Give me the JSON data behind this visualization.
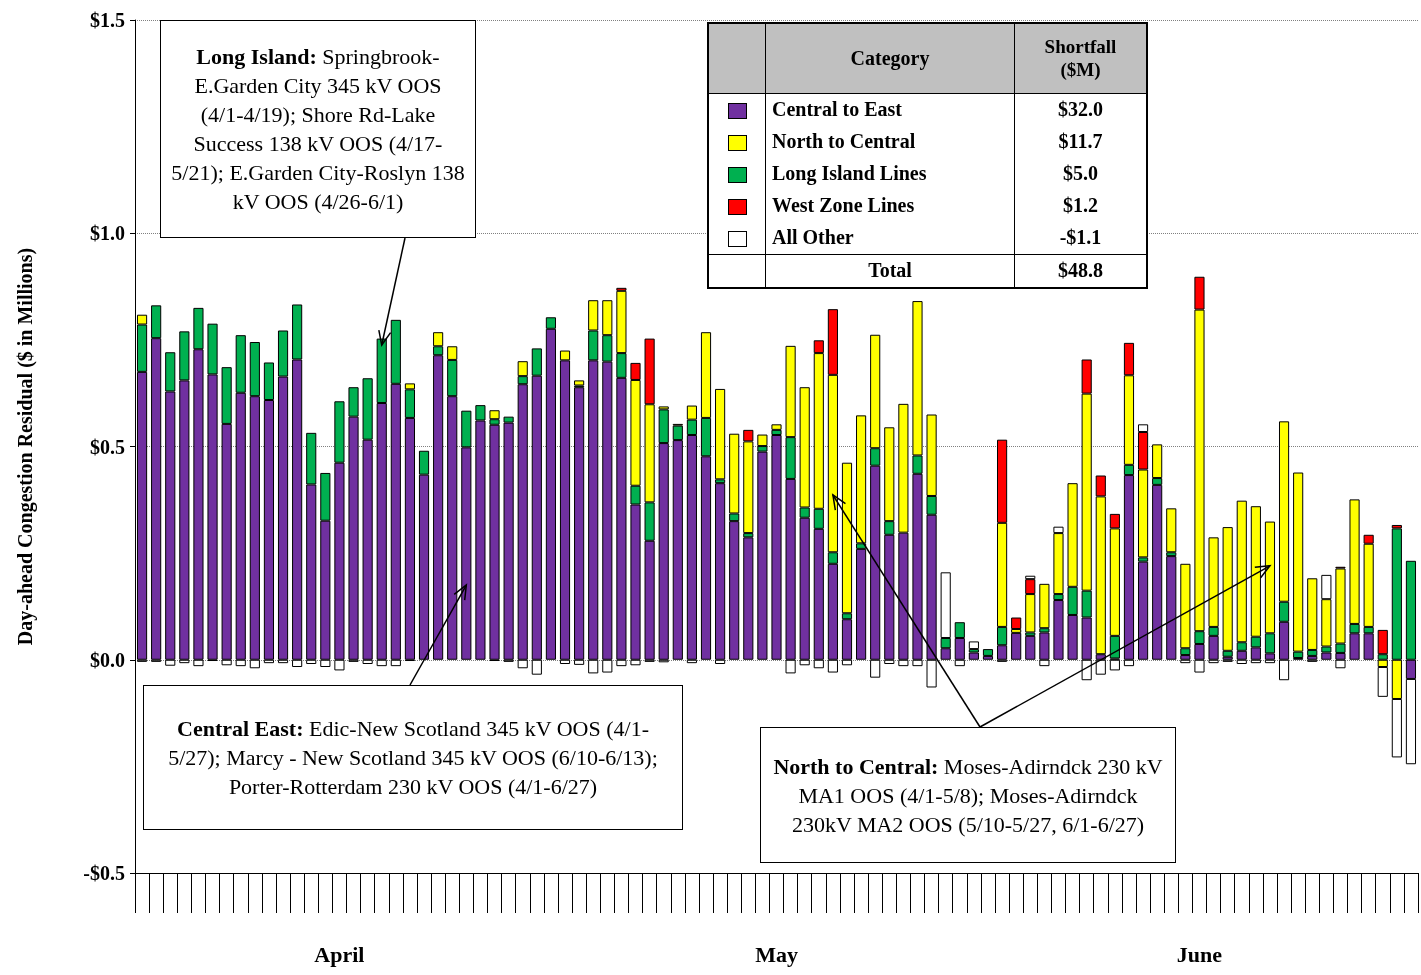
{
  "chart_data": {
    "type": "bar",
    "stacked": true,
    "ylabel": "Day-ahead Congestion Residual ($ in Millions)",
    "legend_title": "Category",
    "legend": "top right",
    "grid": "y",
    "ylim": [
      -0.5,
      1.5
    ],
    "yticks": [
      {
        "value": -0.5,
        "label": "-$0.5"
      },
      {
        "value": 0,
        "label": "$0.0"
      },
      {
        "value": 0.5,
        "label": "$0.5"
      },
      {
        "value": 1,
        "label": "$1.0"
      },
      {
        "value": 1.5,
        "label": "$1.5"
      }
    ],
    "categories": [
      null,
      null,
      null,
      null,
      null,
      null,
      null,
      null,
      null,
      null,
      null,
      null,
      null,
      null,
      "April",
      null,
      null,
      null,
      null,
      null,
      null,
      null,
      null,
      null,
      null,
      null,
      null,
      null,
      null,
      null,
      null,
      null,
      null,
      null,
      null,
      null,
      null,
      null,
      null,
      null,
      null,
      null,
      null,
      null,
      null,
      "May",
      null,
      null,
      null,
      null,
      null,
      null,
      null,
      null,
      null,
      null,
      null,
      null,
      null,
      null,
      null,
      null,
      null,
      null,
      null,
      null,
      null,
      null,
      null,
      null,
      null,
      null,
      null,
      null,
      null,
      "June",
      null,
      null,
      null,
      null,
      null,
      null,
      null,
      null,
      null,
      null,
      null,
      null,
      null,
      null,
      null
    ],
    "series": [
      {
        "name": "Central to East",
        "color": "#7030a0",
        "values": [
          0.675,
          0.754,
          0.629,
          0.655,
          0.728,
          0.669,
          0.553,
          0.626,
          0.618,
          0.609,
          0.664,
          0.704,
          0.411,
          0.326,
          0.462,
          0.57,
          0.516,
          0.602,
          0.647,
          0.567,
          0.434,
          0.714,
          0.618,
          0.498,
          0.561,
          0.551,
          0.556,
          0.646,
          0.666,
          0.776,
          0.702,
          0.639,
          0.702,
          0.699,
          0.661,
          0.364,
          0.279,
          0.508,
          0.515,
          0.527,
          0.477,
          0.414,
          0.325,
          0.287,
          0.488,
          0.527,
          0.424,
          0.333,
          0.307,
          0.225,
          0.095,
          0.26,
          0.455,
          0.293,
          0.298,
          0.436,
          0.34,
          0.027,
          0.051,
          0.017,
          0.009,
          0.034,
          0.063,
          0.056,
          0.064,
          0.14,
          0.105,
          0.099,
          0.013,
          0.003,
          0.433,
          0.23,
          0.41,
          0.243,
          0.011,
          0.037,
          0.056,
          0.007,
          0.021,
          0.029,
          0.015,
          0.089,
          0.004,
          0.009,
          0.017,
          0.016,
          0.062,
          0.062,
          null,
          null,
          -0.045
        ]
      },
      {
        "name": "Long Island Lines",
        "color": "#00b050",
        "values": [
          0.111,
          0.077,
          0.092,
          0.115,
          0.097,
          0.119,
          0.133,
          0.135,
          0.127,
          0.088,
          0.108,
          0.129,
          0.121,
          0.112,
          0.144,
          0.069,
          0.144,
          0.151,
          0.15,
          0.067,
          0.056,
          0.021,
          0.085,
          0.086,
          0.036,
          0.013,
          0.014,
          0.019,
          0.064,
          0.027,
          null,
          0.004,
          0.07,
          0.062,
          0.058,
          0.044,
          0.09,
          0.079,
          0.034,
          0.036,
          0.09,
          0.009,
          0.018,
          0.01,
          0.013,
          0.012,
          0.098,
          0.024,
          0.047,
          0.027,
          0.014,
          0.013,
          0.041,
          0.032,
          null,
          0.043,
          0.044,
          0.024,
          0.037,
          0.008,
          0.016,
          0.043,
          null,
          0.008,
          0.01,
          0.014,
          0.066,
          0.063,
          null,
          0.053,
          0.024,
          0.01,
          0.016,
          0.009,
          0.016,
          0.03,
          0.021,
          0.014,
          0.02,
          0.025,
          0.047,
          0.047,
          0.015,
          0.014,
          0.014,
          0.022,
          0.022,
          0.015,
          0.013,
          0.308,
          0.232
        ]
      },
      {
        "name": "North to Central",
        "color": "#ffff00",
        "values": [
          0.023,
          null,
          null,
          null,
          null,
          null,
          null,
          null,
          null,
          null,
          null,
          null,
          null,
          null,
          null,
          null,
          null,
          null,
          null,
          0.014,
          null,
          0.033,
          0.032,
          null,
          null,
          0.021,
          null,
          0.035,
          null,
          null,
          0.023,
          0.012,
          0.071,
          0.082,
          0.146,
          0.248,
          0.23,
          0.007,
          0.004,
          0.033,
          0.201,
          0.212,
          0.187,
          0.215,
          0.027,
          0.013,
          0.214,
          0.282,
          0.365,
          0.416,
          0.353,
          0.3,
          0.266,
          0.22,
          0.302,
          0.362,
          0.191,
          null,
          null,
          null,
          null,
          0.244,
          0.009,
          0.09,
          0.104,
          0.143,
          0.243,
          0.462,
          0.37,
          0.252,
          0.21,
          0.206,
          0.079,
          0.103,
          0.198,
          0.754,
          0.21,
          0.29,
          0.332,
          0.306,
          0.262,
          0.423,
          0.42,
          0.168,
          0.111,
          0.176,
          0.292,
          0.195,
          -0.017,
          -0.092,
          null
        ]
      },
      {
        "name": "West Zone Lines",
        "color": "#ff0000",
        "values": [
          null,
          null,
          null,
          null,
          null,
          null,
          null,
          null,
          null,
          null,
          null,
          null,
          null,
          null,
          null,
          null,
          null,
          null,
          null,
          null,
          null,
          null,
          null,
          null,
          null,
          null,
          null,
          null,
          null,
          null,
          null,
          null,
          null,
          null,
          0.007,
          0.04,
          0.154,
          null,
          null,
          null,
          null,
          null,
          null,
          0.027,
          null,
          null,
          null,
          null,
          0.03,
          0.154,
          null,
          null,
          null,
          null,
          null,
          null,
          null,
          null,
          null,
          null,
          null,
          0.195,
          0.027,
          0.035,
          null,
          null,
          null,
          0.08,
          0.049,
          0.034,
          0.076,
          0.088,
          null,
          null,
          null,
          0.077,
          null,
          null,
          null,
          null,
          null,
          null,
          null,
          null,
          null,
          0.004,
          null,
          0.021,
          0.057,
          0.008,
          null
        ]
      },
      {
        "name": "All Other",
        "color": "#ffffff",
        "values": [
          -0.005,
          -0.005,
          -0.014,
          -0.008,
          -0.015,
          -0.003,
          -0.013,
          -0.015,
          -0.02,
          -0.008,
          -0.008,
          -0.017,
          -0.01,
          -0.017,
          -0.025,
          -0.005,
          -0.01,
          -0.015,
          -0.015,
          -0.003,
          null,
          null,
          null,
          null,
          null,
          -0.003,
          -0.005,
          -0.02,
          -0.035,
          null,
          -0.01,
          -0.012,
          -0.032,
          -0.03,
          -0.015,
          -0.013,
          -0.005,
          -0.006,
          null,
          -0.008,
          null,
          -0.01,
          null,
          null,
          null,
          null,
          -0.032,
          -0.013,
          -0.02,
          -0.03,
          -0.013,
          null,
          -0.042,
          -0.01,
          -0.015,
          -0.015,
          -0.065,
          0.154,
          -0.015,
          0.018,
          null,
          -0.005,
          null,
          0.008,
          -0.015,
          0.015,
          null,
          -0.048,
          -0.035,
          -0.025,
          -0.015,
          0.018,
          null,
          null,
          -0.008,
          -0.03,
          -0.008,
          -0.005,
          -0.01,
          -0.008,
          -0.008,
          -0.048,
          null,
          -0.005,
          0.057,
          -0.02,
          null,
          null,
          -0.07,
          -0.137,
          -0.2
        ]
      }
    ],
    "annotations": [
      "Long Island: Springbrook-E.Garden City 345 kV OOS (4/1-4/19); Shore Rd-Lake Success 138 kV OOS (4/17-5/21); E.Garden City-Roslyn 138 kV OOS (4/26-6/1)",
      "Central East:  Edic-New Scotland 345 kV OOS (4/1-5/27); Marcy - New Scotland 345 kV OOS (6/10-6/13); Porter-Rotterdam 230 kV OOS (4/1-6/27)",
      "North to Central: Moses-Adirndck 230 kV MA1 OOS (4/1-5/8); Moses-Adirndck 230kV MA2 OOS (5/10-5/27, 6/1-6/27)",
      "Shortfall ($M)",
      "$32.0",
      "$11.7",
      "$5.0",
      "$1.2",
      "-$1.1",
      "Total",
      "$48.8"
    ]
  }
}
